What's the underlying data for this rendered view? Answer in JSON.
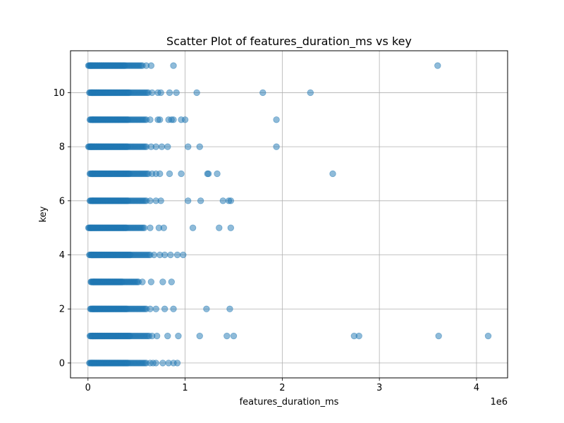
{
  "chart_data": {
    "type": "scatter",
    "title": "Scatter Plot of features_duration_ms vs key",
    "xlabel": "features_duration_ms",
    "ylabel": "key",
    "x_offset_label": "1e6",
    "x_scale_multiplier": 1000000,
    "xlim": [
      -180000,
      4320000
    ],
    "ylim": [
      -0.55,
      11.55
    ],
    "x_ticks": [
      0,
      1000000,
      2000000,
      3000000,
      4000000
    ],
    "x_tick_labels": [
      "0",
      "1",
      "2",
      "3",
      "4"
    ],
    "y_ticks": [
      0,
      2,
      4,
      6,
      8,
      10
    ],
    "y_tick_labels": [
      "0",
      "2",
      "4",
      "6",
      "8",
      "10"
    ],
    "grid": true,
    "marker_color": "#1f77b4",
    "marker_alpha": 0.5,
    "dense_ranges": [
      {
        "y": 0,
        "x_min": 15000,
        "x_max": 600000
      },
      {
        "y": 1,
        "x_min": 20000,
        "x_max": 630000
      },
      {
        "y": 2,
        "x_min": 25000,
        "x_max": 600000
      },
      {
        "y": 3,
        "x_min": 30000,
        "x_max": 520000
      },
      {
        "y": 4,
        "x_min": 15000,
        "x_max": 640000
      },
      {
        "y": 5,
        "x_min": 5000,
        "x_max": 580000
      },
      {
        "y": 6,
        "x_min": 20000,
        "x_max": 600000
      },
      {
        "y": 7,
        "x_min": 20000,
        "x_max": 620000
      },
      {
        "y": 8,
        "x_min": 5000,
        "x_max": 600000
      },
      {
        "y": 9,
        "x_min": 20000,
        "x_max": 600000
      },
      {
        "y": 10,
        "x_min": 15000,
        "x_max": 620000
      },
      {
        "y": 11,
        "x_min": 5000,
        "x_max": 560000
      }
    ],
    "points": [
      {
        "x": 640000,
        "y": 0
      },
      {
        "x": 670000,
        "y": 0
      },
      {
        "x": 700000,
        "y": 0
      },
      {
        "x": 770000,
        "y": 0
      },
      {
        "x": 830000,
        "y": 0
      },
      {
        "x": 880000,
        "y": 0
      },
      {
        "x": 920000,
        "y": 0
      },
      {
        "x": 660000,
        "y": 1
      },
      {
        "x": 710000,
        "y": 1
      },
      {
        "x": 820000,
        "y": 1
      },
      {
        "x": 930000,
        "y": 1
      },
      {
        "x": 1150000,
        "y": 1
      },
      {
        "x": 1430000,
        "y": 1
      },
      {
        "x": 1500000,
        "y": 1
      },
      {
        "x": 2740000,
        "y": 1
      },
      {
        "x": 2790000,
        "y": 1
      },
      {
        "x": 3610000,
        "y": 1
      },
      {
        "x": 4120000,
        "y": 1
      },
      {
        "x": 640000,
        "y": 2
      },
      {
        "x": 700000,
        "y": 2
      },
      {
        "x": 790000,
        "y": 2
      },
      {
        "x": 880000,
        "y": 2
      },
      {
        "x": 1220000,
        "y": 2
      },
      {
        "x": 1460000,
        "y": 2
      },
      {
        "x": 560000,
        "y": 3
      },
      {
        "x": 650000,
        "y": 3
      },
      {
        "x": 770000,
        "y": 3
      },
      {
        "x": 860000,
        "y": 3
      },
      {
        "x": 680000,
        "y": 4
      },
      {
        "x": 740000,
        "y": 4
      },
      {
        "x": 790000,
        "y": 4
      },
      {
        "x": 850000,
        "y": 4
      },
      {
        "x": 920000,
        "y": 4
      },
      {
        "x": 980000,
        "y": 4
      },
      {
        "x": 640000,
        "y": 5
      },
      {
        "x": 730000,
        "y": 5
      },
      {
        "x": 780000,
        "y": 5
      },
      {
        "x": 1080000,
        "y": 5
      },
      {
        "x": 1350000,
        "y": 5
      },
      {
        "x": 1470000,
        "y": 5
      },
      {
        "x": 640000,
        "y": 6
      },
      {
        "x": 700000,
        "y": 6
      },
      {
        "x": 750000,
        "y": 6
      },
      {
        "x": 1030000,
        "y": 6
      },
      {
        "x": 1160000,
        "y": 6
      },
      {
        "x": 1390000,
        "y": 6
      },
      {
        "x": 1450000,
        "y": 6
      },
      {
        "x": 1470000,
        "y": 6
      },
      {
        "x": 660000,
        "y": 7
      },
      {
        "x": 700000,
        "y": 7
      },
      {
        "x": 740000,
        "y": 7
      },
      {
        "x": 840000,
        "y": 7
      },
      {
        "x": 960000,
        "y": 7
      },
      {
        "x": 1230000,
        "y": 7
      },
      {
        "x": 1240000,
        "y": 7
      },
      {
        "x": 1330000,
        "y": 7
      },
      {
        "x": 2520000,
        "y": 7
      },
      {
        "x": 650000,
        "y": 8
      },
      {
        "x": 700000,
        "y": 8
      },
      {
        "x": 760000,
        "y": 8
      },
      {
        "x": 820000,
        "y": 8
      },
      {
        "x": 1030000,
        "y": 8
      },
      {
        "x": 1150000,
        "y": 8
      },
      {
        "x": 1940000,
        "y": 8
      },
      {
        "x": 640000,
        "y": 9
      },
      {
        "x": 720000,
        "y": 9
      },
      {
        "x": 740000,
        "y": 9
      },
      {
        "x": 830000,
        "y": 9
      },
      {
        "x": 860000,
        "y": 9
      },
      {
        "x": 880000,
        "y": 9
      },
      {
        "x": 960000,
        "y": 9
      },
      {
        "x": 1000000,
        "y": 9
      },
      {
        "x": 1940000,
        "y": 9
      },
      {
        "x": 660000,
        "y": 10
      },
      {
        "x": 720000,
        "y": 10
      },
      {
        "x": 750000,
        "y": 10
      },
      {
        "x": 840000,
        "y": 10
      },
      {
        "x": 910000,
        "y": 10
      },
      {
        "x": 1120000,
        "y": 10
      },
      {
        "x": 1800000,
        "y": 10
      },
      {
        "x": 2290000,
        "y": 10
      },
      {
        "x": 600000,
        "y": 11
      },
      {
        "x": 650000,
        "y": 11
      },
      {
        "x": 880000,
        "y": 11
      },
      {
        "x": 3600000,
        "y": 11
      }
    ]
  }
}
